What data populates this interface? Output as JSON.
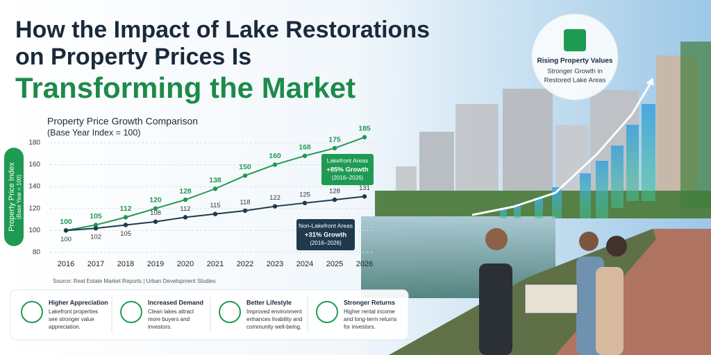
{
  "header": {
    "title_lines": [
      "How the Impact of Lake Restorations",
      "on Property Prices Is",
      "Transforming the Market"
    ]
  },
  "badge": {
    "title": "Rising Property Values",
    "lines": [
      "Stronger Growth in",
      "Restored Lake Areas"
    ]
  },
  "chart_data": {
    "type": "line",
    "title": "Property Price Growth Comparison",
    "subtitle": "(Base Year Index = 100)",
    "y_label": "Property Price Index",
    "y_label_note": "(Base Year = 100)",
    "categories": [
      "2016",
      "2017",
      "2018",
      "2019",
      "2020",
      "2021",
      "2022",
      "2023",
      "2024",
      "2025",
      "2026"
    ],
    "series": [
      {
        "name": "Lakefront Areas",
        "color": "#1e9a52",
        "values": [
          100,
          105,
          112,
          120,
          128,
          138,
          150,
          160,
          168,
          175,
          185
        ],
        "annotation": [
          "+85% Growth",
          "(2016–2026)"
        ]
      },
      {
        "name": "Non-Lakefront Areas",
        "color": "#1f3a4d",
        "values": [
          100,
          102,
          105,
          108,
          112,
          115,
          118,
          122,
          125,
          128,
          131
        ],
        "annotation": [
          "+31% Growth",
          "(2016–2026)"
        ]
      }
    ],
    "ylim": [
      80,
      190
    ],
    "yticks": [
      80,
      100,
      120,
      140,
      160,
      180
    ],
    "grid": true,
    "source": "Source: Real Estate Market Reports | Urban Development Studies"
  },
  "features": [
    {
      "title": "Higher Appreciation",
      "lines": [
        "Lakefront properties",
        "see stronger value",
        "appreciation."
      ]
    },
    {
      "title": "Increased Demand",
      "lines": [
        "Clean lakes attract",
        "more buyers and",
        "investors."
      ]
    },
    {
      "title": "Better Lifestyle",
      "lines": [
        "Improved environment",
        "enhances livability and",
        "community well-being."
      ]
    },
    {
      "title": "Stronger Returns",
      "lines": [
        "Higher rental income",
        "and long-term returns",
        "for investors."
      ]
    }
  ]
}
